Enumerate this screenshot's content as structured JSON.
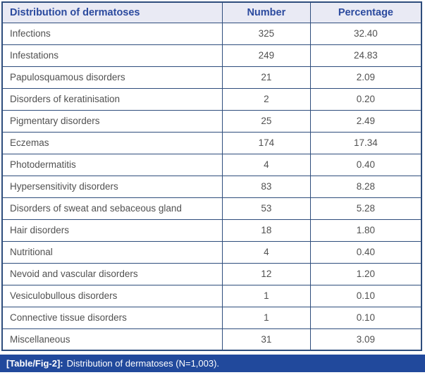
{
  "colors": {
    "table_border": "#2e4d7c",
    "header_bg": "#e9eaf4",
    "header_text": "#2b4a9e",
    "body_text": "#515151",
    "caption_bg": "#21499c",
    "caption_text": "#ffffff"
  },
  "table": {
    "headers": {
      "col1": "Distribution of dermatoses",
      "col2": "Number",
      "col3": "Percentage"
    },
    "rows": [
      {
        "label": "Infections",
        "number": "325",
        "percentage": "32.40"
      },
      {
        "label": "Infestations",
        "number": "249",
        "percentage": "24.83"
      },
      {
        "label": "Papulosquamous disorders",
        "number": "21",
        "percentage": "2.09"
      },
      {
        "label": "Disorders of keratinisation",
        "number": "2",
        "percentage": "0.20"
      },
      {
        "label": "Pigmentary disorders",
        "number": "25",
        "percentage": "2.49"
      },
      {
        "label": "Eczemas",
        "number": "174",
        "percentage": "17.34"
      },
      {
        "label": "Photodermatitis",
        "number": "4",
        "percentage": "0.40"
      },
      {
        "label": "Hypersensitivity disorders",
        "number": "83",
        "percentage": "8.28"
      },
      {
        "label": "Disorders of sweat and sebaceous gland",
        "number": "53",
        "percentage": "5.28"
      },
      {
        "label": "Hair disorders",
        "number": "18",
        "percentage": "1.80"
      },
      {
        "label": "Nutritional",
        "number": "4",
        "percentage": "0.40"
      },
      {
        "label": "Nevoid and vascular disorders",
        "number": "12",
        "percentage": "1.20"
      },
      {
        "label": "Vesiculobullous disorders",
        "number": "1",
        "percentage": "0.10"
      },
      {
        "label": "Connective tissue disorders",
        "number": "1",
        "percentage": "0.10"
      },
      {
        "label": "Miscellaneous",
        "number": "31",
        "percentage": "3.09"
      }
    ]
  },
  "caption": {
    "tag": "[Table/Fig-2]:",
    "text": "Distribution of dermatoses (N=1,003)."
  },
  "chart_data": {
    "type": "table",
    "title": "[Table/Fig-2]: Distribution of dermatoses (N=1,003).",
    "columns": [
      "Distribution of dermatoses",
      "Number",
      "Percentage"
    ],
    "categories": [
      "Infections",
      "Infestations",
      "Papulosquamous disorders",
      "Disorders of keratinisation",
      "Pigmentary disorders",
      "Eczemas",
      "Photodermatitis",
      "Hypersensitivity disorders",
      "Disorders of sweat and sebaceous gland",
      "Hair disorders",
      "Nutritional",
      "Nevoid and vascular disorders",
      "Vesiculobullous disorders",
      "Connective tissue disorders",
      "Miscellaneous"
    ],
    "series": [
      {
        "name": "Number",
        "values": [
          325,
          249,
          21,
          2,
          25,
          174,
          4,
          83,
          53,
          18,
          4,
          12,
          1,
          1,
          31
        ]
      },
      {
        "name": "Percentage",
        "values": [
          32.4,
          24.83,
          2.09,
          0.2,
          2.49,
          17.34,
          0.4,
          8.28,
          5.28,
          1.8,
          0.4,
          1.2,
          0.1,
          0.1,
          3.09
        ]
      }
    ],
    "total_n": 1003
  }
}
